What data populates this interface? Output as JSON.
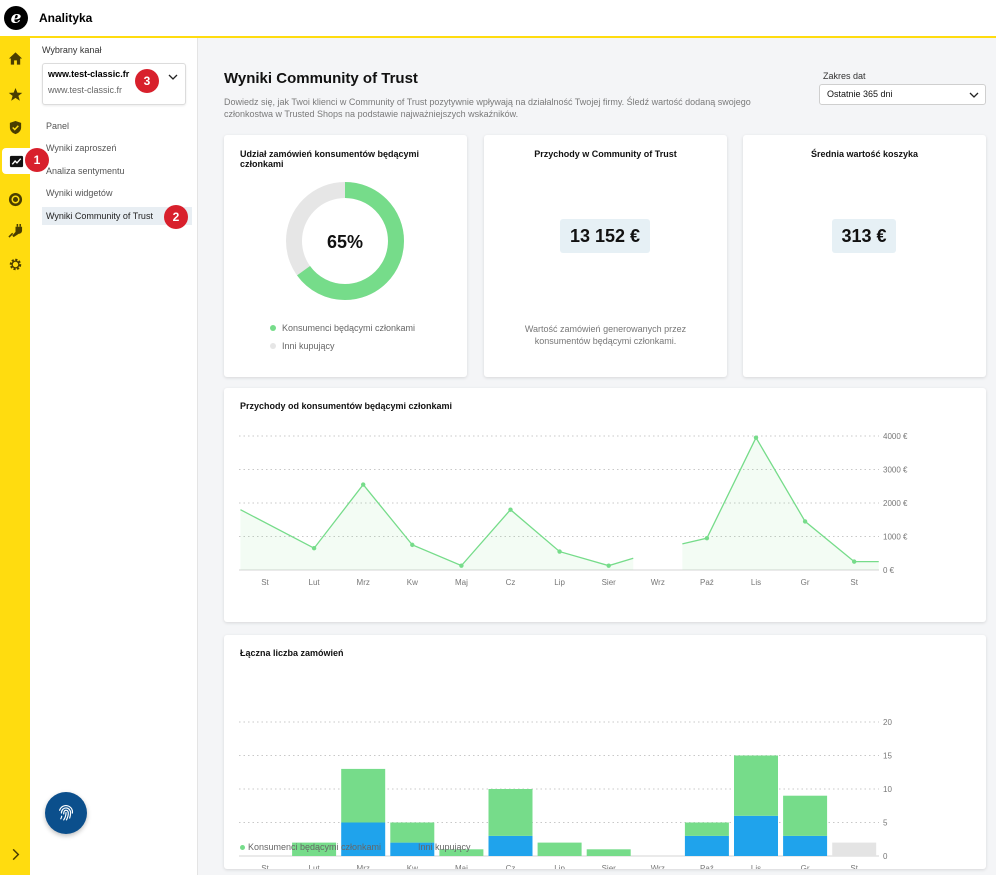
{
  "app": {
    "title": "Analityka",
    "logo_letter": "e"
  },
  "rail": {
    "icons": [
      "home-icon",
      "star-icon",
      "shield-check-icon",
      "analytics-icon",
      "coin-icon",
      "plug-icon",
      "gear-icon"
    ],
    "expand_icon": "chevron-right-icon"
  },
  "subnav": {
    "channel_label": "Wybrany kanał",
    "channel_name": "www.test-classic.fr",
    "channel_url": "www.test-classic.fr",
    "items": [
      {
        "label": "Panel"
      },
      {
        "label": "Wyniki zaproszeń"
      },
      {
        "label": "Analiza sentymentu"
      },
      {
        "label": "Wyniki widgetów"
      },
      {
        "label": "Wyniki Community of Trust"
      }
    ]
  },
  "badges": {
    "b1": "1",
    "b2": "2",
    "b3": "3"
  },
  "main": {
    "title": "Wyniki Community of Trust",
    "description": "Dowiedz się, jak Twoi klienci w Community of Trust pozytywnie wpływają na działalność Twojej firmy. Śledź wartość dodaną swojego członkostwa w Trusted Shops na podstawie najważniejszych wskaźników.",
    "range_label": "Zakres dat",
    "range_value": "Ostatnie 365 dni"
  },
  "cards": {
    "share": {
      "title": "Udział zamówień konsumentów będącymi członkami",
      "percent_label": "65%",
      "percent": 65,
      "legend_members": "Konsumenci będącymi członkami",
      "legend_others": "Inni kupujący"
    },
    "revenue": {
      "title": "Przychody w Community of Trust",
      "value": "13 152 €",
      "note": "Wartość zamówień generowanych przez konsumentów będącymi członkami."
    },
    "basket": {
      "title": "Średnia wartość koszyka",
      "value": "313 €"
    }
  },
  "colors": {
    "green": "#76dc8a",
    "blue": "#1fa3ec",
    "gray": "#e4e4e4",
    "yellow": "#ffdc0f",
    "badge": "#d8202c"
  },
  "chart_data": [
    {
      "type": "line",
      "title": "Przychody od konsumentów będącymi członkami",
      "categories": [
        "St",
        "Lut",
        "Mrz",
        "Kw",
        "Maj",
        "Cz",
        "Lip",
        "Sier",
        "Wrz",
        "Paź",
        "Lis",
        "Gr",
        "St"
      ],
      "y_ticks": [
        "0 €",
        "1000 €",
        "2000 €",
        "3000 €",
        "4000 €"
      ],
      "ylim": [
        0,
        4000
      ],
      "points": [
        {
          "x": -0.5,
          "y": 1800,
          "marker": false
        },
        {
          "x": 1,
          "y": 650,
          "marker": true
        },
        {
          "x": 2,
          "y": 2550,
          "marker": true
        },
        {
          "x": 3,
          "y": 750,
          "marker": true
        },
        {
          "x": 4,
          "y": 130,
          "marker": true
        },
        {
          "x": 5,
          "y": 1800,
          "marker": true
        },
        {
          "x": 6,
          "y": 550,
          "marker": true
        },
        {
          "x": 7,
          "y": 130,
          "marker": true
        },
        {
          "x": 7.5,
          "y": 350,
          "marker": false
        },
        null,
        {
          "x": 8.5,
          "y": 780,
          "marker": false
        },
        {
          "x": 9,
          "y": 950,
          "marker": true
        },
        {
          "x": 10,
          "y": 3950,
          "marker": true
        },
        {
          "x": 11,
          "y": 1450,
          "marker": true
        },
        {
          "x": 12,
          "y": 250,
          "marker": true
        },
        {
          "x": 12.5,
          "y": 250,
          "marker": false
        }
      ]
    },
    {
      "type": "bar",
      "title": "Łączna liczba zamówień",
      "categories": [
        "St",
        "Lut",
        "Mrz",
        "Kw",
        "Maj",
        "Cz",
        "Lip",
        "Sier",
        "Wrz",
        "Paź",
        "Lis",
        "Gr",
        "St"
      ],
      "y_ticks": [
        "0",
        "5",
        "10",
        "15",
        "20"
      ],
      "ylim": [
        0,
        20
      ],
      "series": [
        {
          "name": "Inni kupujący",
          "color": "#1fa3ec",
          "values": [
            0,
            0,
            5,
            2,
            0,
            3,
            0,
            0,
            0,
            3,
            6,
            3,
            0
          ]
        },
        {
          "name": "Konsumenci będącymi członkami",
          "color": "#76dc8a",
          "values": [
            0,
            2,
            8,
            3,
            1,
            7,
            2,
            1,
            0,
            2,
            9,
            6,
            0
          ]
        }
      ],
      "partial": {
        "index": 12,
        "value": 2,
        "color": "#e4e4e4"
      },
      "legend": [
        "Konsumenci będącymi członkami",
        "Inni kupujący"
      ]
    }
  ]
}
